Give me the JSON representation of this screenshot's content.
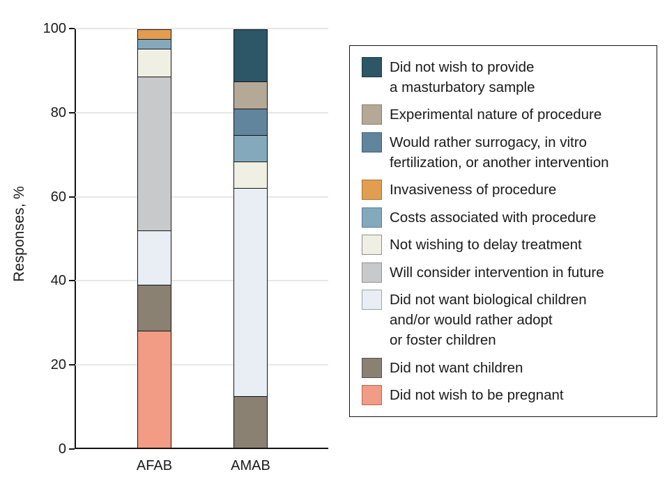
{
  "chart_data": {
    "type": "bar",
    "stacked": true,
    "title": "",
    "xlabel": "",
    "ylabel": "Responses, %",
    "ylim": [
      0,
      100
    ],
    "yticks": [
      0,
      20,
      40,
      60,
      80,
      100
    ],
    "grid": "horizontal",
    "legend_position": "right",
    "categories": [
      "AFAB",
      "AMAB"
    ],
    "series": [
      {
        "name": "Did not wish to provide a masturbatory sample",
        "color": "#2d5666",
        "border": "#1b3845",
        "values": [
          0,
          12.5
        ]
      },
      {
        "name": "Experimental nature of procedure",
        "color": "#b3a996",
        "border": "#857c68",
        "values": [
          0,
          6.25
        ]
      },
      {
        "name": "Would rather surrogacy, in vitro fertilization, or another intervention",
        "color": "#61859c",
        "border": "#3f5d70",
        "values": [
          0,
          6.25
        ]
      },
      {
        "name": "Invasiveness of procedure",
        "color": "#e29d51",
        "border": "#a86e2f",
        "values": [
          2.2,
          0
        ]
      },
      {
        "name": "Costs associated with procedure",
        "color": "#84a9bd",
        "border": "#567d92",
        "values": [
          2.2,
          6.25
        ]
      },
      {
        "name": "Not wishing to delay treatment",
        "color": "#f0efe3",
        "border": "#90908a",
        "values": [
          6.5,
          6.25
        ]
      },
      {
        "name": "Will consider intervention in future",
        "color": "#c8c9cb",
        "border": "#8f9092",
        "values": [
          37,
          0
        ]
      },
      {
        "name": "Did not want biological children and/or would rather adopt or foster children",
        "color": "#e8eef3",
        "border": "#98a4ac",
        "values": [
          13,
          50
        ]
      },
      {
        "name": "Did not want children",
        "color": "#8a8173",
        "border": "#57514a",
        "values": [
          10.9,
          12.5
        ]
      },
      {
        "name": "Did not wish to be pregnant",
        "color": "#f29b85",
        "border": "#b66a52",
        "values": [
          28.3,
          0
        ]
      }
    ]
  },
  "legend": {
    "items": [
      {
        "label": "Did not wish to provide\na masturbatory sample"
      },
      {
        "label": "Experimental nature of procedure"
      },
      {
        "label": "Would rather surrogacy, in vitro\nfertilization, or another intervention"
      },
      {
        "label": "Invasiveness of procedure"
      },
      {
        "label": "Costs associated with procedure"
      },
      {
        "label": "Not wishing to delay treatment"
      },
      {
        "label": "Will consider intervention in future"
      },
      {
        "label": "Did not want biological children\nand/or would rather adopt\nor foster children"
      },
      {
        "label": "Did not want children"
      },
      {
        "label": "Did not wish to be pregnant"
      }
    ]
  }
}
